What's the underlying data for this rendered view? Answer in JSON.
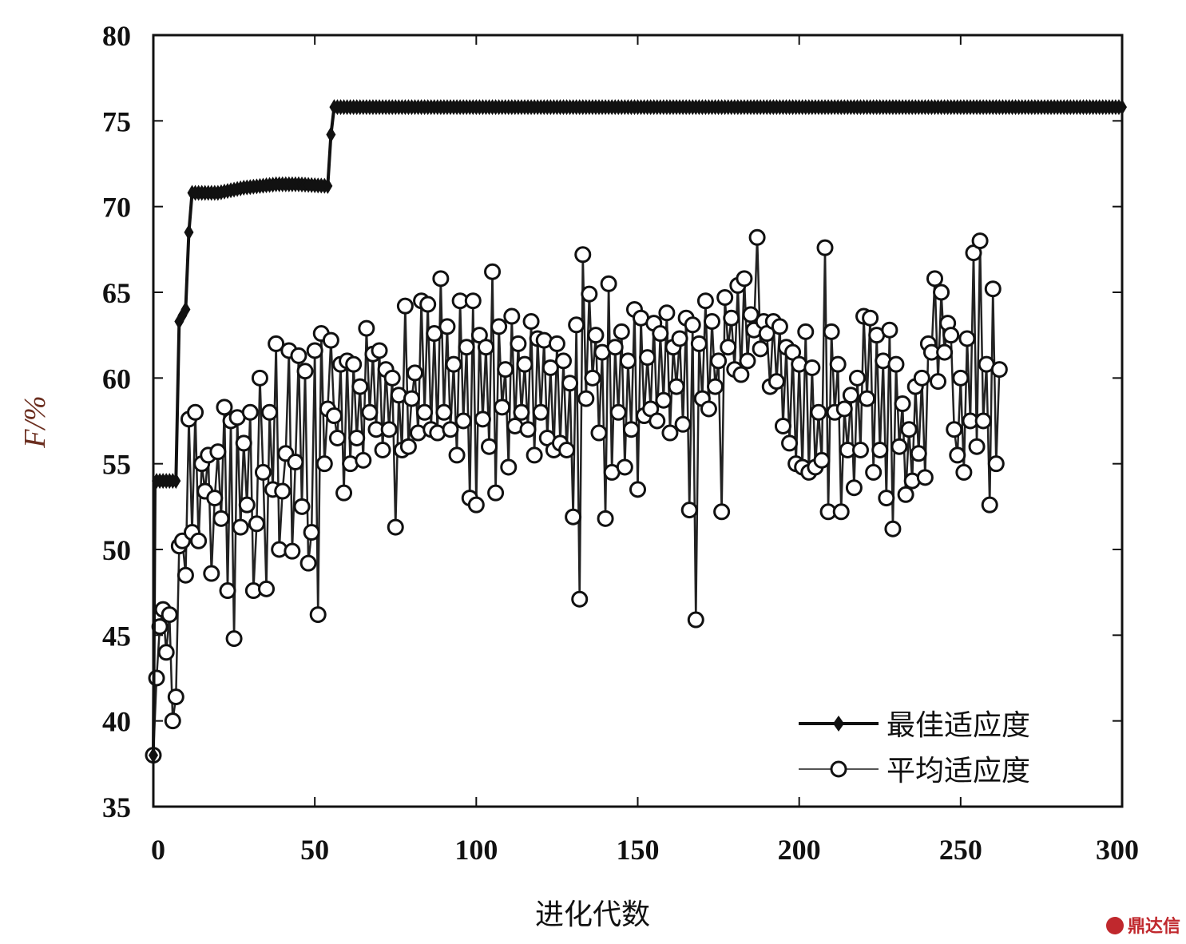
{
  "chart_data": {
    "type": "line",
    "title": "",
    "xlabel": "进化代数",
    "ylabel": "F/%",
    "xlim": [
      0,
      300
    ],
    "ylim": [
      35,
      80
    ],
    "xticks": [
      "0",
      "50",
      "100",
      "150",
      "200",
      "250",
      "300"
    ],
    "yticks": [
      "35",
      "40",
      "45",
      "50",
      "55",
      "60",
      "65",
      "70",
      "75",
      "80"
    ],
    "grid": false,
    "legend_position": "bottom-right",
    "series": [
      {
        "name": "最佳适应度",
        "marker": "diamond",
        "points": [
          [
            0,
            38
          ],
          [
            0.5,
            54
          ],
          [
            7,
            54
          ],
          [
            8,
            63.3
          ],
          [
            10,
            64
          ],
          [
            11,
            68.5
          ],
          [
            12,
            70.8
          ],
          [
            20,
            70.8
          ],
          [
            28,
            71.1
          ],
          [
            38,
            71.3
          ],
          [
            45,
            71.3
          ],
          [
            54,
            71.2
          ],
          [
            55,
            74.2
          ],
          [
            56,
            75.8
          ],
          [
            300,
            75.8
          ]
        ]
      },
      {
        "name": "平均适应度",
        "marker": "circle",
        "points": [
          [
            0,
            38
          ],
          [
            1,
            42.5
          ],
          [
            2,
            45.5
          ],
          [
            3,
            46.5
          ],
          [
            4,
            44
          ],
          [
            5,
            46.2
          ],
          [
            6,
            40
          ],
          [
            7,
            41.4
          ],
          [
            8,
            50.2
          ],
          [
            9,
            50.5
          ],
          [
            10,
            48.5
          ],
          [
            11,
            57.6
          ],
          [
            12,
            51
          ],
          [
            13,
            58
          ],
          [
            14,
            50.5
          ],
          [
            15,
            55
          ],
          [
            16,
            53.4
          ],
          [
            17,
            55.5
          ],
          [
            18,
            48.6
          ],
          [
            19,
            53
          ],
          [
            20,
            55.7
          ],
          [
            21,
            51.8
          ],
          [
            22,
            58.3
          ],
          [
            23,
            47.6
          ],
          [
            24,
            57.5
          ],
          [
            25,
            44.8
          ],
          [
            26,
            57.7
          ],
          [
            27,
            51.3
          ],
          [
            28,
            56.2
          ],
          [
            29,
            52.6
          ],
          [
            30,
            58
          ],
          [
            31,
            47.6
          ],
          [
            32,
            51.5
          ],
          [
            33,
            60
          ],
          [
            34,
            54.5
          ],
          [
            35,
            47.7
          ],
          [
            36,
            58
          ],
          [
            37,
            53.5
          ],
          [
            38,
            62
          ],
          [
            39,
            50
          ],
          [
            40,
            53.4
          ],
          [
            41,
            55.6
          ],
          [
            42,
            61.6
          ],
          [
            43,
            49.9
          ],
          [
            44,
            55.1
          ],
          [
            45,
            61.3
          ],
          [
            46,
            52.5
          ],
          [
            47,
            60.4
          ],
          [
            48,
            49.2
          ],
          [
            49,
            51
          ],
          [
            50,
            61.6
          ],
          [
            51,
            46.2
          ],
          [
            52,
            62.6
          ],
          [
            53,
            55
          ],
          [
            54,
            58.2
          ],
          [
            55,
            62.2
          ],
          [
            56,
            57.8
          ],
          [
            57,
            56.5
          ],
          [
            58,
            60.8
          ],
          [
            59,
            53.3
          ],
          [
            60,
            61
          ],
          [
            61,
            55
          ],
          [
            62,
            60.8
          ],
          [
            63,
            56.5
          ],
          [
            64,
            59.5
          ],
          [
            65,
            55.2
          ],
          [
            66,
            62.9
          ],
          [
            67,
            58
          ],
          [
            68,
            61.4
          ],
          [
            69,
            57
          ],
          [
            70,
            61.6
          ],
          [
            71,
            55.8
          ],
          [
            72,
            60.5
          ],
          [
            73,
            57
          ],
          [
            74,
            60
          ],
          [
            75,
            51.3
          ],
          [
            76,
            59
          ],
          [
            77,
            55.8
          ],
          [
            78,
            64.2
          ],
          [
            79,
            56
          ],
          [
            80,
            58.8
          ],
          [
            81,
            60.3
          ],
          [
            82,
            56.8
          ],
          [
            83,
            64.5
          ],
          [
            84,
            58
          ],
          [
            85,
            64.3
          ],
          [
            86,
            57
          ],
          [
            87,
            62.6
          ],
          [
            88,
            56.8
          ],
          [
            89,
            65.8
          ],
          [
            90,
            58
          ],
          [
            91,
            63
          ],
          [
            92,
            57
          ],
          [
            93,
            60.8
          ],
          [
            94,
            55.5
          ],
          [
            95,
            64.5
          ],
          [
            96,
            57.5
          ],
          [
            97,
            61.8
          ],
          [
            98,
            53
          ],
          [
            99,
            64.5
          ],
          [
            100,
            52.6
          ],
          [
            101,
            62.5
          ],
          [
            102,
            57.6
          ],
          [
            103,
            61.8
          ],
          [
            104,
            56
          ],
          [
            105,
            66.2
          ],
          [
            106,
            53.3
          ],
          [
            107,
            63
          ],
          [
            108,
            58.3
          ],
          [
            109,
            60.5
          ],
          [
            110,
            54.8
          ],
          [
            111,
            63.6
          ],
          [
            112,
            57.2
          ],
          [
            113,
            62
          ],
          [
            114,
            58
          ],
          [
            115,
            60.8
          ],
          [
            116,
            57
          ],
          [
            117,
            63.3
          ],
          [
            118,
            55.5
          ],
          [
            119,
            62.3
          ],
          [
            120,
            58
          ],
          [
            121,
            62.2
          ],
          [
            122,
            56.5
          ],
          [
            123,
            60.6
          ],
          [
            124,
            55.8
          ],
          [
            125,
            62
          ],
          [
            126,
            56.2
          ],
          [
            127,
            61
          ],
          [
            128,
            55.8
          ],
          [
            129,
            59.7
          ],
          [
            130,
            51.9
          ],
          [
            131,
            63.1
          ],
          [
            132,
            47.1
          ],
          [
            133,
            67.2
          ],
          [
            134,
            58.8
          ],
          [
            135,
            64.9
          ],
          [
            136,
            60
          ],
          [
            137,
            62.5
          ],
          [
            138,
            56.8
          ],
          [
            139,
            61.5
          ],
          [
            140,
            51.8
          ],
          [
            141,
            65.5
          ],
          [
            142,
            54.5
          ],
          [
            143,
            61.8
          ],
          [
            144,
            58
          ],
          [
            145,
            62.7
          ],
          [
            146,
            54.8
          ],
          [
            147,
            61
          ],
          [
            148,
            57
          ],
          [
            149,
            64
          ],
          [
            150,
            53.5
          ],
          [
            151,
            63.5
          ],
          [
            152,
            57.8
          ],
          [
            153,
            61.2
          ],
          [
            154,
            58.2
          ],
          [
            155,
            63.2
          ],
          [
            156,
            57.5
          ],
          [
            157,
            62.6
          ],
          [
            158,
            58.7
          ],
          [
            159,
            63.8
          ],
          [
            160,
            56.8
          ],
          [
            161,
            61.8
          ],
          [
            162,
            59.5
          ],
          [
            163,
            62.3
          ],
          [
            164,
            57.3
          ],
          [
            165,
            63.5
          ],
          [
            166,
            52.3
          ],
          [
            167,
            63.1
          ],
          [
            168,
            45.9
          ],
          [
            169,
            62
          ],
          [
            170,
            58.8
          ],
          [
            171,
            64.5
          ],
          [
            172,
            58.2
          ],
          [
            173,
            63.3
          ],
          [
            174,
            59.5
          ],
          [
            175,
            61
          ],
          [
            176,
            52.2
          ],
          [
            177,
            64.7
          ],
          [
            178,
            61.8
          ],
          [
            179,
            63.5
          ],
          [
            180,
            60.5
          ],
          [
            181,
            65.4
          ],
          [
            182,
            60.2
          ],
          [
            183,
            65.8
          ],
          [
            184,
            61
          ],
          [
            185,
            63.7
          ],
          [
            186,
            62.8
          ],
          [
            187,
            68.2
          ],
          [
            188,
            61.7
          ],
          [
            189,
            63.3
          ],
          [
            190,
            62.6
          ],
          [
            191,
            59.5
          ],
          [
            192,
            63.3
          ],
          [
            193,
            59.8
          ],
          [
            194,
            63
          ],
          [
            195,
            57.2
          ],
          [
            196,
            61.8
          ],
          [
            197,
            56.2
          ],
          [
            198,
            61.5
          ],
          [
            199,
            55
          ],
          [
            200,
            60.8
          ],
          [
            201,
            54.8
          ],
          [
            202,
            62.7
          ],
          [
            203,
            54.5
          ],
          [
            204,
            60.6
          ],
          [
            205,
            54.8
          ],
          [
            206,
            58
          ],
          [
            207,
            55.2
          ],
          [
            208,
            67.6
          ],
          [
            209,
            52.2
          ],
          [
            210,
            62.7
          ],
          [
            211,
            58
          ],
          [
            212,
            60.8
          ],
          [
            213,
            52.2
          ],
          [
            214,
            58.2
          ],
          [
            215,
            55.8
          ],
          [
            216,
            59
          ],
          [
            217,
            53.6
          ],
          [
            218,
            60
          ],
          [
            219,
            55.8
          ],
          [
            220,
            63.6
          ],
          [
            221,
            58.8
          ],
          [
            222,
            63.5
          ],
          [
            223,
            54.5
          ],
          [
            224,
            62.5
          ],
          [
            225,
            55.8
          ],
          [
            226,
            61
          ],
          [
            227,
            53
          ],
          [
            228,
            62.8
          ],
          [
            229,
            51.2
          ],
          [
            230,
            60.8
          ],
          [
            231,
            56
          ],
          [
            232,
            58.5
          ],
          [
            233,
            53.2
          ],
          [
            234,
            57
          ],
          [
            235,
            54
          ],
          [
            236,
            59.5
          ],
          [
            237,
            55.6
          ],
          [
            238,
            60
          ],
          [
            239,
            54.2
          ],
          [
            240,
            62
          ],
          [
            241,
            61.5
          ],
          [
            242,
            65.8
          ],
          [
            243,
            59.8
          ],
          [
            244,
            65
          ],
          [
            245,
            61.5
          ],
          [
            246,
            63.2
          ],
          [
            247,
            62.5
          ],
          [
            248,
            57
          ],
          [
            249,
            55.5
          ],
          [
            250,
            60
          ],
          [
            251,
            54.5
          ],
          [
            252,
            62.3
          ],
          [
            253,
            57.5
          ],
          [
            254,
            67.3
          ],
          [
            255,
            56
          ],
          [
            256,
            68
          ],
          [
            257,
            57.5
          ],
          [
            258,
            60.8
          ],
          [
            259,
            52.6
          ],
          [
            260,
            65.2
          ],
          [
            261,
            55
          ],
          [
            262,
            60.5
          ]
        ]
      }
    ]
  },
  "watermark": {
    "text": "鼎达信",
    "color": "#c0282d"
  }
}
